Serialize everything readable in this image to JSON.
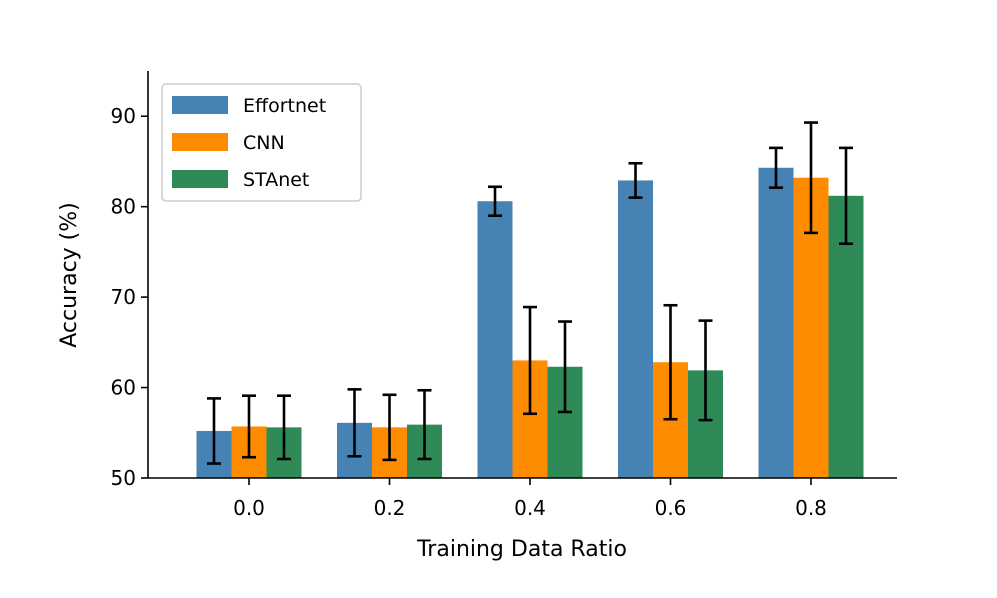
{
  "chart_data": {
    "type": "bar",
    "title": "",
    "xlabel": "Training Data Ratio",
    "ylabel": "Accuracy (%)",
    "ylim": [
      50,
      95
    ],
    "yticks": [
      50,
      60,
      70,
      80,
      90
    ],
    "grid": false,
    "legend_position": "top-left",
    "categories": [
      "0.0",
      "0.2",
      "0.4",
      "0.6",
      "0.8"
    ],
    "series": [
      {
        "name": "Effortnet",
        "color": "#4682b4",
        "values": [
          55.2,
          56.1,
          80.6,
          82.9,
          84.3
        ],
        "errors": [
          3.6,
          3.7,
          1.6,
          1.9,
          2.2
        ]
      },
      {
        "name": "CNN",
        "color": "#ff8c00",
        "values": [
          55.7,
          55.6,
          63.0,
          62.8,
          83.2
        ],
        "errors": [
          3.4,
          3.6,
          5.9,
          6.3,
          6.1
        ]
      },
      {
        "name": "STAnet",
        "color": "#2e8b57",
        "values": [
          55.6,
          55.9,
          62.3,
          61.9,
          81.2
        ],
        "errors": [
          3.5,
          3.8,
          5.0,
          5.5,
          5.3
        ]
      }
    ]
  }
}
